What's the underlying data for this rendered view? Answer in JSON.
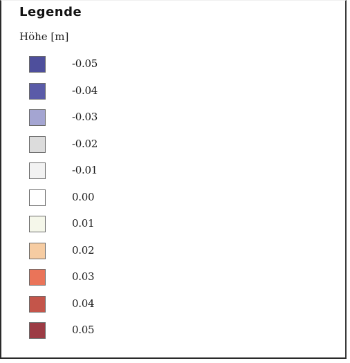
{
  "legend": {
    "title": "Legende",
    "unit_label": "Höhe [m]",
    "items": [
      {
        "value": -0.05,
        "label": "-0.05",
        "color": "#4e4f9c"
      },
      {
        "value": -0.04,
        "label": "-0.04",
        "color": "#5a5ba8"
      },
      {
        "value": -0.03,
        "label": "-0.03",
        "color": "#a4a5d2"
      },
      {
        "value": -0.02,
        "label": "-0.02",
        "color": "#dcdcdc"
      },
      {
        "value": -0.01,
        "label": "-0.01",
        "color": "#f2f2f2"
      },
      {
        "value": 0.0,
        "label": "0.00",
        "color": "#ffffff"
      },
      {
        "value": 0.01,
        "label": "0.01",
        "color": "#f5f7ea"
      },
      {
        "value": 0.02,
        "label": "0.02",
        "color": "#f6cca2"
      },
      {
        "value": 0.03,
        "label": "0.03",
        "color": "#ea7459"
      },
      {
        "value": 0.04,
        "label": "0.04",
        "color": "#c4554a"
      },
      {
        "value": 0.05,
        "label": "0.05",
        "color": "#9c3b44"
      }
    ]
  }
}
